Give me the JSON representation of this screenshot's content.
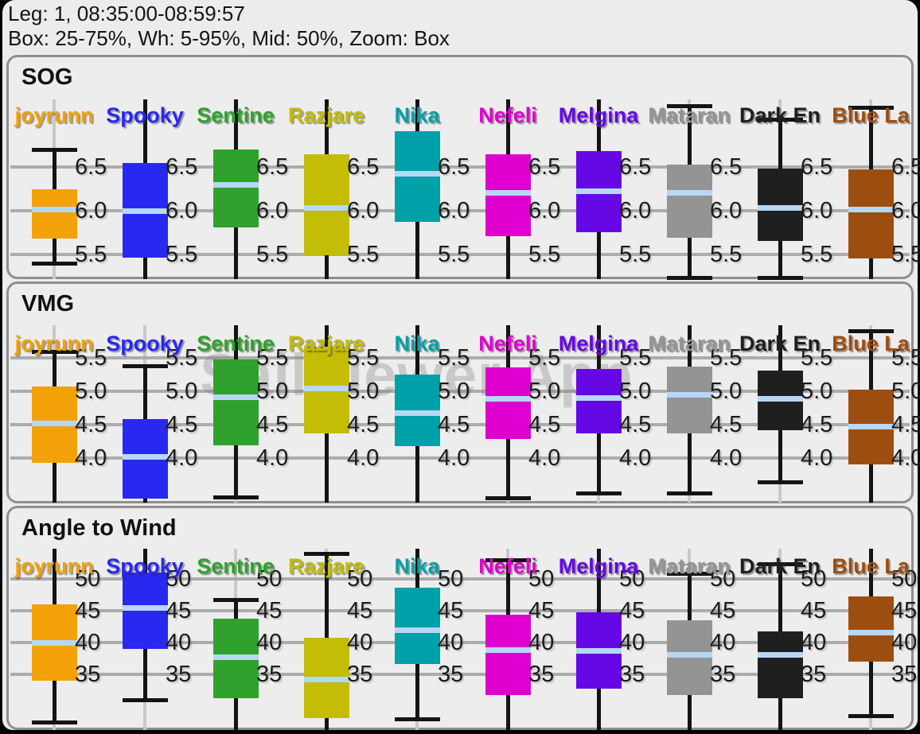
{
  "header": {
    "line1": "Leg: 1, 08:35:00-08:59:57",
    "line2": "Box: 25-75%, Wh: 5-95%, Mid: 50%, Zoom: Box"
  },
  "watermark": "SailViewer App",
  "boats": [
    {
      "name": "joyrunn",
      "color": "#F2A208"
    },
    {
      "name": "Spooky",
      "color": "#2828F0"
    },
    {
      "name": "Sentine",
      "color": "#2EA22C"
    },
    {
      "name": "Razjare",
      "color": "#C3BD06"
    },
    {
      "name": "Nika",
      "color": "#00A1A8"
    },
    {
      "name": "Nefeli",
      "color": "#DF00CF"
    },
    {
      "name": "Melgina",
      "color": "#6608E4"
    },
    {
      "name": "Mataran",
      "color": "#949494"
    },
    {
      "name": "Dark En",
      "color": "#1F1F1F"
    },
    {
      "name": "Blue La",
      "color": "#9C4E10"
    }
  ],
  "styles": {
    "median_line": "#B7D7F6",
    "grid_horizontal": "#ACACAC",
    "grid_vertical": "#C9C9C9",
    "whisker": "#141414",
    "panel_border": "#8F8F8F",
    "surface_background": "#ECECEC",
    "page_background": "#000000",
    "text": "#141414"
  },
  "chart_data": [
    {
      "type": "box",
      "title": "SOG",
      "legend_position": "top-inside",
      "grid": true,
      "ticks": [
        6.5,
        6.0,
        5.5
      ],
      "tick_labels": [
        "6.5",
        "6.0",
        "5.5"
      ],
      "ylim_visible": [
        5.22,
        7.27
      ],
      "series": [
        {
          "boat": "joyrunn",
          "high": 6.7,
          "q3": 6.25,
          "median": 6.02,
          "q1": 5.68,
          "low": 5.4
        },
        {
          "boat": "Spooky",
          "high": 7.4,
          "q3": 6.55,
          "median": 6.0,
          "q1": 5.46,
          "low": 5.05
        },
        {
          "boat": "Sentine",
          "high": 7.4,
          "q3": 6.7,
          "median": 6.3,
          "q1": 5.81,
          "low": 5.05
        },
        {
          "boat": "Razjare",
          "high": 7.4,
          "q3": 6.65,
          "median": 6.04,
          "q1": 5.49,
          "low": 5.05
        },
        {
          "boat": "Nika",
          "high": 7.4,
          "q3": 6.91,
          "median": 6.43,
          "q1": 5.87,
          "low": 5.05
        },
        {
          "boat": "Nefeli",
          "high": 7.4,
          "q3": 6.65,
          "median": 6.21,
          "q1": 5.71,
          "low": 5.05
        },
        {
          "boat": "Melgina",
          "high": 7.4,
          "q3": 6.68,
          "median": 6.23,
          "q1": 5.75,
          "low": 5.05
        },
        {
          "boat": "Mataran",
          "high": 7.2,
          "q3": 6.53,
          "median": 6.21,
          "q1": 5.69,
          "low": 5.24
        },
        {
          "boat": "Dark En",
          "high": 7.05,
          "q3": 6.48,
          "median": 6.04,
          "q1": 5.65,
          "low": 5.24
        },
        {
          "boat": "Blue La",
          "high": 7.18,
          "q3": 6.47,
          "median": 6.02,
          "q1": 5.45,
          "low": 5.05
        }
      ]
    },
    {
      "type": "box",
      "title": "VMG",
      "legend_position": "top-inside",
      "grid": true,
      "ticks": [
        5.5,
        5.0,
        4.5,
        4.0
      ],
      "tick_labels": [
        "5.5",
        "5.0",
        "4.5",
        "4.0"
      ],
      "ylim_visible": [
        3.33,
        5.99
      ],
      "series": [
        {
          "boat": "joyrunn",
          "high": 5.6,
          "q3": 5.07,
          "median": 4.52,
          "q1": 3.93,
          "low": 3.0
        },
        {
          "boat": "Spooky",
          "high": 5.38,
          "q3": 4.58,
          "median": 4.02,
          "q1": 3.39,
          "low": 3.0
        },
        {
          "boat": "Sentine",
          "high": 6.0,
          "q3": 5.48,
          "median": 4.92,
          "q1": 4.19,
          "low": 3.42
        },
        {
          "boat": "Razjare",
          "high": 6.0,
          "q3": 5.67,
          "median": 5.05,
          "q1": 4.37,
          "low": 3.2
        },
        {
          "boat": "Nika",
          "high": 6.0,
          "q3": 5.25,
          "median": 4.68,
          "q1": 4.18,
          "low": 3.0
        },
        {
          "boat": "Nefeli",
          "high": 6.0,
          "q3": 5.36,
          "median": 4.89,
          "q1": 4.29,
          "low": 3.4
        },
        {
          "boat": "Melgina",
          "high": 6.0,
          "q3": 5.33,
          "median": 4.91,
          "q1": 4.37,
          "low": 3.48
        },
        {
          "boat": "Mataran",
          "high": 6.0,
          "q3": 5.37,
          "median": 4.95,
          "q1": 4.37,
          "low": 3.48
        },
        {
          "boat": "Dark En",
          "high": 6.0,
          "q3": 5.31,
          "median": 4.89,
          "q1": 4.42,
          "low": 3.64
        },
        {
          "boat": "Blue La",
          "high": 5.9,
          "q3": 5.02,
          "median": 4.48,
          "q1": 3.9,
          "low": 3.0
        }
      ]
    },
    {
      "type": "box",
      "title": "Angle to Wind",
      "legend_position": "top-inside",
      "grid": true,
      "ticks": [
        50,
        45,
        40,
        35
      ],
      "tick_labels": [
        "50",
        "45",
        "40",
        "35"
      ],
      "ylim_visible": [
        26.25,
        54.75
      ],
      "series": [
        {
          "boat": "joyrunn",
          "high": 55.0,
          "q3": 46.0,
          "median": 40.0,
          "q1": 34.0,
          "low": 27.5
        },
        {
          "boat": "Spooky",
          "high": 58.0,
          "q3": 51.0,
          "median": 45.5,
          "q1": 39.0,
          "low": 31.0
        },
        {
          "boat": "Sentine",
          "high": 46.8,
          "q3": 43.7,
          "median": 37.8,
          "q1": 31.2,
          "low": 23.0
        },
        {
          "boat": "Razjare",
          "high": 54.0,
          "q3": 40.8,
          "median": 34.3,
          "q1": 28.1,
          "low": 23.0
        },
        {
          "boat": "Nika",
          "high": 57.0,
          "q3": 48.6,
          "median": 42.0,
          "q1": 36.6,
          "low": 28.0
        },
        {
          "boat": "Nefeli",
          "high": 53.0,
          "q3": 44.4,
          "median": 38.9,
          "q1": 31.7,
          "low": 22.0
        },
        {
          "boat": "Melgina",
          "high": 55.0,
          "q3": 44.8,
          "median": 38.7,
          "q1": 32.7,
          "low": 22.0
        },
        {
          "boat": "Mataran",
          "high": 50.9,
          "q3": 43.5,
          "median": 38.1,
          "q1": 31.7,
          "low": 23.0
        },
        {
          "boat": "Dark En",
          "high": 52.4,
          "q3": 41.7,
          "median": 38.1,
          "q1": 31.2,
          "low": 24.0
        },
        {
          "boat": "Blue La",
          "high": 56.0,
          "q3": 47.2,
          "median": 41.6,
          "q1": 37.0,
          "low": 28.5
        }
      ]
    }
  ]
}
